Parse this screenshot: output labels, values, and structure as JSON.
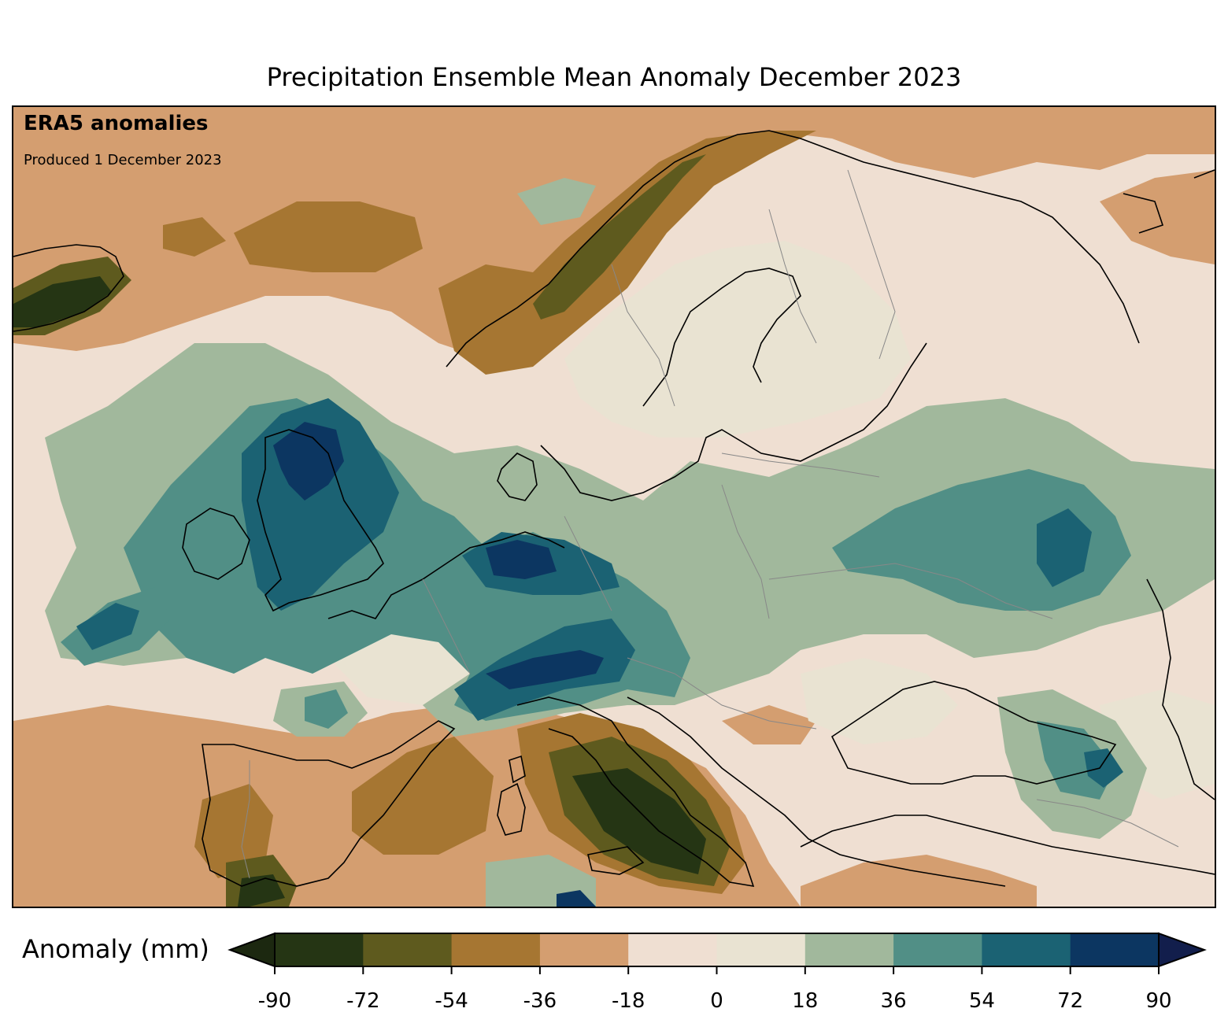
{
  "title": "Precipitation Ensemble Mean Anomaly December 2023",
  "overlay": {
    "heading": "ERA5 anomalies",
    "produced": "Produced 1 December 2023"
  },
  "colorbar": {
    "label": "Anomaly (mm)",
    "ticks": [
      "-90",
      "-72",
      "-54",
      "-36",
      "-18",
      "0",
      "18",
      "36",
      "54",
      "72",
      "90"
    ],
    "tick_values": [
      -90,
      -72,
      -54,
      -36,
      -18,
      0,
      18,
      36,
      54,
      72,
      90
    ],
    "colors": [
      "#253514",
      "#5e5a1e",
      "#a67632",
      "#d49e70",
      "#efdfd2",
      "#e9e3d2",
      "#a1b89c",
      "#518f86",
      "#1b6273",
      "#0c3661"
    ],
    "under_color": "#1c2810",
    "over_color": "#121e4c",
    "extend": "both"
  },
  "map": {
    "region": "Europe",
    "fill_color": "#efdfd2"
  }
}
